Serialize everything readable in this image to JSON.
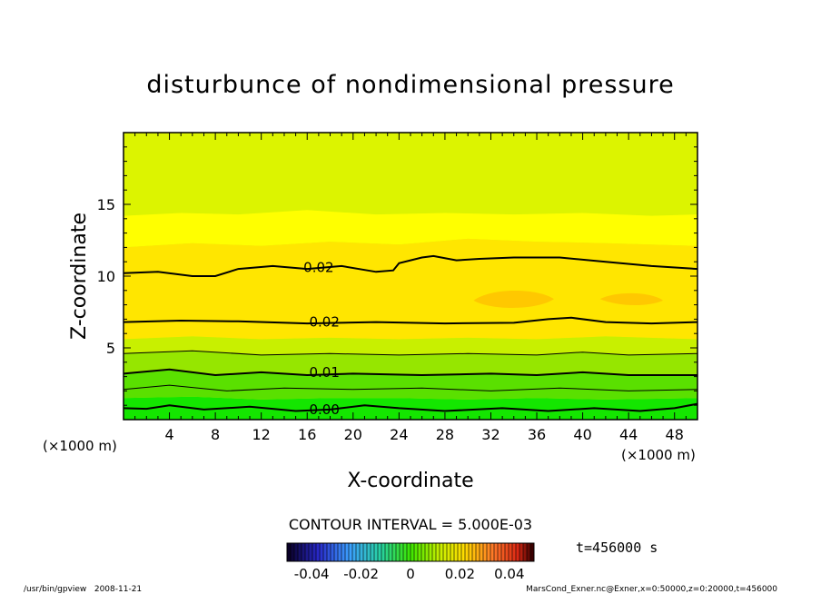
{
  "chart_data": {
    "type": "contour",
    "title": "disturbunce of nondimensional pressure",
    "xlabel": "X-coordinate",
    "ylabel": "Z-coordinate",
    "x_unit_left": "(×1000 m)",
    "x_unit_right": "(×1000 m)",
    "xlim": [
      0,
      50
    ],
    "ylim": [
      0,
      20
    ],
    "x_ticks": [
      4,
      8,
      12,
      16,
      20,
      24,
      28,
      32,
      36,
      40,
      44,
      48
    ],
    "x_tick_labels": [
      "4",
      "8",
      "12",
      "16",
      "20",
      "24",
      "28",
      "32",
      "36",
      "40",
      "44",
      "48"
    ],
    "y_ticks": [
      5,
      10,
      15
    ],
    "y_tick_labels": [
      "5",
      "10",
      "15"
    ],
    "contour_labels": [
      {
        "text": "0.02",
        "x": 17,
        "z": 10.6
      },
      {
        "text": "0.02",
        "x": 17.5,
        "z": 6.8
      },
      {
        "text": "0.01",
        "x": 17.5,
        "z": 3.3
      },
      {
        "text": "0.00",
        "x": 17.5,
        "z": 0.7
      }
    ],
    "contour_interval_text": "CONTOUR INTERVAL = 5.000E-03",
    "contour_interval": 0.005,
    "colorbar": {
      "range": [
        -0.05,
        0.05
      ],
      "tick_values": [
        -0.04,
        -0.02,
        0,
        0.02,
        0.04
      ],
      "tick_labels": [
        "-0.04",
        "-0.02",
        "0",
        "0.02",
        "0.04"
      ]
    },
    "time_label": "t=456000 s",
    "footer_left": "/usr/bin/gpview   2008-11-21",
    "footer_right": "MarsCond_Exner.nc@Exner,x=0:50000,z=0:20000,t=456000",
    "colors": {
      "band_top": "#dcf400",
      "band_upper": "#ffff00",
      "band_mid": "#ffe600",
      "band_core": "#ffc800",
      "band_lower_1": "#c8f000",
      "band_lower_2": "#96e600",
      "band_lower_3": "#5ae000",
      "band_bottom": "#14e600"
    }
  }
}
